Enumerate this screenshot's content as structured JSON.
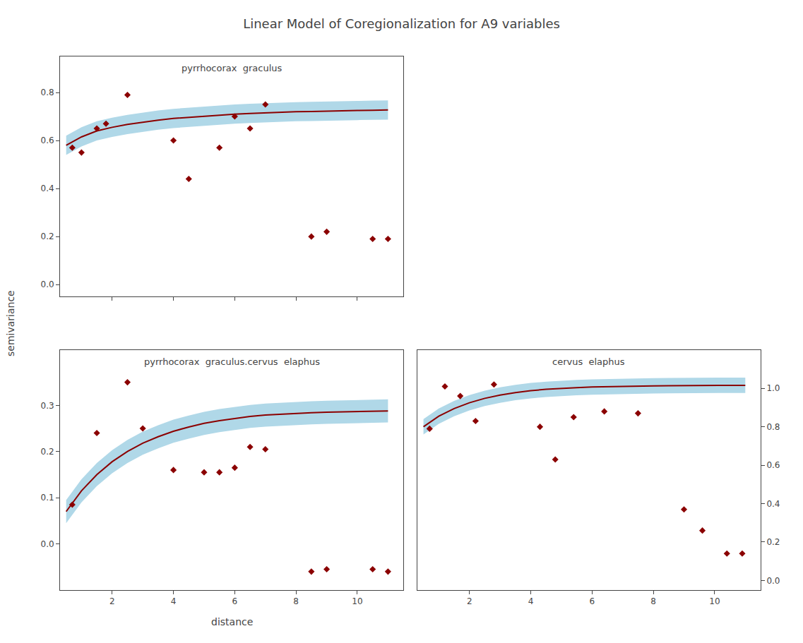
{
  "title": "Linear Model of Coregionalization for A9 variables",
  "xlabel": "distance",
  "ylabel": "semivariance",
  "chart_data": [
    {
      "type": "line",
      "title": "pyrrhocorax  graculus",
      "grid": false,
      "tick_labels": "y",
      "xlim": [
        0.3,
        11.5
      ],
      "xticks": [
        2,
        4,
        6,
        8,
        10
      ],
      "ylim": [
        -0.05,
        0.95
      ],
      "yticks": [
        {
          "value": 0.0,
          "label": "0.0"
        },
        0.2,
        0.4,
        0.6,
        0.8
      ],
      "series": [
        {
          "type": "band",
          "color": "#B0D8E8",
          "x": [
            0.5,
            1.0,
            1.5,
            2.0,
            2.5,
            3.0,
            3.5,
            4.0,
            4.5,
            5.0,
            5.5,
            6.0,
            6.5,
            7.0,
            7.5,
            8.0,
            8.5,
            9.0,
            9.5,
            10.0,
            10.5,
            11.0
          ],
          "lower": [
            0.54,
            0.575,
            0.6,
            0.615,
            0.627,
            0.637,
            0.645,
            0.652,
            0.657,
            0.662,
            0.666,
            0.67,
            0.673,
            0.676,
            0.678,
            0.68,
            0.681,
            0.683,
            0.684,
            0.685,
            0.686,
            0.687
          ],
          "upper": [
            0.62,
            0.655,
            0.68,
            0.695,
            0.707,
            0.717,
            0.725,
            0.732,
            0.737,
            0.742,
            0.746,
            0.75,
            0.753,
            0.756,
            0.758,
            0.76,
            0.761,
            0.763,
            0.764,
            0.765,
            0.766,
            0.767
          ]
        },
        {
          "type": "line",
          "color": "#8B0000",
          "line_style": "solid",
          "x": [
            0.5,
            1.0,
            1.5,
            2.0,
            2.5,
            3.0,
            3.5,
            4.0,
            4.5,
            5.0,
            5.5,
            6.0,
            6.5,
            7.0,
            7.5,
            8.0,
            8.5,
            9.0,
            9.5,
            10.0,
            10.5,
            11.0
          ],
          "values": [
            0.58,
            0.615,
            0.64,
            0.655,
            0.667,
            0.677,
            0.685,
            0.692,
            0.697,
            0.702,
            0.706,
            0.71,
            0.713,
            0.716,
            0.718,
            0.72,
            0.721,
            0.723,
            0.724,
            0.725,
            0.726,
            0.727
          ]
        },
        {
          "type": "scatter",
          "color": "#8B0000",
          "marker": "diamond",
          "x": [
            0.7,
            1.0,
            1.5,
            1.8,
            2.5,
            4.0,
            4.5,
            5.5,
            6.0,
            6.5,
            7.0,
            8.5,
            9.0,
            10.5,
            11.0
          ],
          "values": [
            0.57,
            0.55,
            0.65,
            0.67,
            0.79,
            0.6,
            0.44,
            0.57,
            0.7,
            0.65,
            0.75,
            0.2,
            0.22,
            0.19,
            0.19
          ]
        }
      ]
    },
    {
      "type": "line",
      "title": "pyrrhocorax  graculus.cervus  elaphus",
      "grid": false,
      "xlim": [
        0.3,
        11.5
      ],
      "xticks": [
        2,
        4,
        6,
        8,
        10
      ],
      "ylim": [
        -0.1,
        0.42
      ],
      "yticks": [
        {
          "value": 0.0,
          "label": "0.0"
        },
        0.1,
        0.2,
        0.3
      ],
      "series": [
        {
          "type": "band",
          "color": "#B0D8E8",
          "x": [
            0.5,
            1.0,
            1.5,
            2.0,
            2.5,
            3.0,
            3.5,
            4.0,
            4.5,
            5.0,
            5.5,
            6.0,
            6.5,
            7.0,
            7.5,
            8.0,
            8.5,
            9.0,
            9.5,
            10.0,
            10.5,
            11.0
          ],
          "lower": [
            0.045,
            0.09,
            0.125,
            0.153,
            0.175,
            0.193,
            0.207,
            0.219,
            0.228,
            0.236,
            0.242,
            0.247,
            0.251,
            0.254,
            0.256,
            0.258,
            0.259,
            0.26,
            0.261,
            0.262,
            0.263,
            0.263
          ],
          "upper": [
            0.095,
            0.14,
            0.175,
            0.203,
            0.225,
            0.243,
            0.257,
            0.269,
            0.278,
            0.286,
            0.292,
            0.297,
            0.301,
            0.304,
            0.306,
            0.308,
            0.309,
            0.31,
            0.311,
            0.312,
            0.313,
            0.313
          ]
        },
        {
          "type": "line",
          "color": "#8B0000",
          "line_style": "solid",
          "x": [
            0.5,
            1.0,
            1.5,
            2.0,
            2.5,
            3.0,
            3.5,
            4.0,
            4.5,
            5.0,
            5.5,
            6.0,
            6.5,
            7.0,
            7.5,
            8.0,
            8.5,
            9.0,
            9.5,
            10.0,
            10.5,
            11.0
          ],
          "values": [
            0.07,
            0.115,
            0.15,
            0.178,
            0.2,
            0.218,
            0.232,
            0.244,
            0.253,
            0.261,
            0.267,
            0.272,
            0.276,
            0.279,
            0.281,
            0.283,
            0.284,
            0.285,
            0.286,
            0.287,
            0.288,
            0.288
          ]
        },
        {
          "type": "scatter",
          "color": "#8B0000",
          "marker": "diamond",
          "x": [
            0.7,
            1.5,
            2.5,
            3.0,
            4.0,
            5.0,
            5.5,
            6.0,
            6.5,
            7.0,
            8.5,
            9.0,
            10.5,
            11.0
          ],
          "values": [
            0.085,
            0.24,
            0.35,
            0.25,
            0.16,
            0.155,
            0.155,
            0.165,
            0.21,
            0.205,
            -0.06,
            -0.055,
            -0.055,
            -0.06
          ]
        }
      ]
    },
    {
      "type": "line",
      "title": "cervus  elaphus",
      "grid": false,
      "xlim": [
        0.3,
        11.5
      ],
      "xticks": [
        2,
        4,
        6,
        8,
        10
      ],
      "ylim": [
        -0.05,
        1.2
      ],
      "yticks": [
        {
          "value": 0.0,
          "label": "0.0"
        },
        0.2,
        0.4,
        0.6,
        0.8,
        {
          "value": 1.0,
          "label": "1.0"
        }
      ],
      "series": [
        {
          "type": "band",
          "color": "#B0D8E8",
          "x": [
            0.5,
            1.0,
            1.5,
            2.0,
            2.5,
            3.0,
            3.5,
            4.0,
            4.5,
            5.0,
            5.5,
            6.0,
            6.5,
            7.0,
            7.5,
            8.0,
            8.5,
            9.0,
            9.5,
            10.0,
            10.5,
            11.0
          ],
          "lower": [
            0.76,
            0.815,
            0.855,
            0.885,
            0.908,
            0.925,
            0.938,
            0.948,
            0.955,
            0.96,
            0.964,
            0.967,
            0.969,
            0.971,
            0.972,
            0.973,
            0.974,
            0.975,
            0.975,
            0.976,
            0.976,
            0.976
          ],
          "upper": [
            0.84,
            0.895,
            0.935,
            0.965,
            0.988,
            1.005,
            1.018,
            1.028,
            1.035,
            1.04,
            1.044,
            1.047,
            1.049,
            1.051,
            1.052,
            1.053,
            1.054,
            1.055,
            1.055,
            1.056,
            1.056,
            1.056
          ]
        },
        {
          "type": "line",
          "color": "#8B0000",
          "line_style": "solid",
          "x": [
            0.5,
            1.0,
            1.5,
            2.0,
            2.5,
            3.0,
            3.5,
            4.0,
            4.5,
            5.0,
            5.5,
            6.0,
            6.5,
            7.0,
            7.5,
            8.0,
            8.5,
            9.0,
            9.5,
            10.0,
            10.5,
            11.0
          ],
          "values": [
            0.8,
            0.855,
            0.895,
            0.925,
            0.948,
            0.965,
            0.978,
            0.988,
            0.995,
            1.0,
            1.004,
            1.007,
            1.009,
            1.011,
            1.012,
            1.013,
            1.014,
            1.015,
            1.015,
            1.016,
            1.016,
            1.016
          ]
        },
        {
          "type": "scatter",
          "color": "#8B0000",
          "marker": "diamond",
          "x": [
            0.7,
            1.2,
            1.7,
            2.2,
            2.8,
            4.3,
            4.8,
            5.4,
            6.4,
            7.5,
            9.0,
            9.6,
            10.4,
            10.9
          ],
          "values": [
            0.79,
            1.01,
            0.96,
            0.83,
            1.02,
            0.8,
            0.63,
            0.85,
            0.88,
            0.87,
            0.37,
            0.26,
            0.14,
            0.14
          ]
        }
      ]
    }
  ]
}
